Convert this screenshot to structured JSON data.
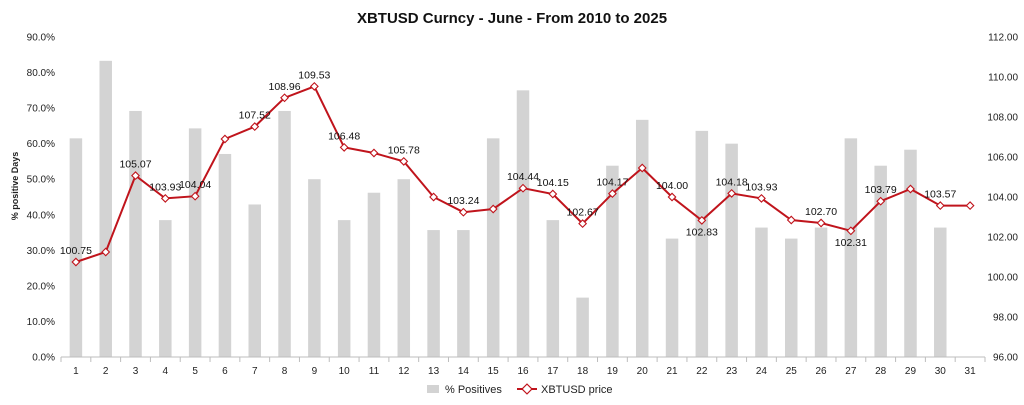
{
  "chart_data": {
    "type": "bar+line",
    "title": "XBTUSD Curncy - June - From 2010 to 2025",
    "xlabel": "",
    "ylabel": "% positive Days",
    "y2label": "",
    "categories": [
      "1",
      "2",
      "3",
      "4",
      "5",
      "6",
      "7",
      "8",
      "9",
      "10",
      "11",
      "12",
      "13",
      "14",
      "15",
      "16",
      "17",
      "18",
      "19",
      "20",
      "21",
      "22",
      "23",
      "24",
      "25",
      "26",
      "27",
      "28",
      "29",
      "30",
      "31"
    ],
    "ylim": [
      0,
      90
    ],
    "y_ticks": [
      "0.0%",
      "10.0%",
      "20.0%",
      "30.0%",
      "40.0%",
      "50.0%",
      "60.0%",
      "70.0%",
      "80.0%",
      "90.0%"
    ],
    "y2lim": [
      96,
      112
    ],
    "y2_ticks": [
      "96.00",
      "98.00",
      "100.00",
      "102.00",
      "104.00",
      "106.00",
      "108.00",
      "110.00",
      "112.00"
    ],
    "grid": false,
    "legend_position": "bottom",
    "series": [
      {
        "name": "% Positives",
        "type": "bar",
        "axis": "left",
        "color": "#d3d3d3",
        "values": [
          61.5,
          83.3,
          69.2,
          38.5,
          64.3,
          57.1,
          42.9,
          69.2,
          50.0,
          38.5,
          46.2,
          50.0,
          35.7,
          35.7,
          61.5,
          75.0,
          38.5,
          16.7,
          53.8,
          66.7,
          33.3,
          63.6,
          60.0,
          36.4,
          33.3,
          36.4,
          61.5,
          53.8,
          58.3,
          36.4,
          0
        ]
      },
      {
        "name": "XBTUSD price",
        "type": "line",
        "axis": "right",
        "color": "#c0141c",
        "values": [
          100.75,
          101.25,
          105.07,
          103.93,
          104.04,
          106.9,
          107.52,
          108.96,
          109.53,
          106.48,
          106.2,
          105.78,
          104.0,
          103.24,
          103.4,
          104.44,
          104.15,
          102.67,
          104.17,
          105.45,
          104.0,
          102.83,
          104.18,
          103.93,
          102.85,
          102.7,
          102.31,
          103.79,
          104.4,
          103.57,
          103.57
        ],
        "data_labels": [
          {
            "index": 0,
            "text": "100.75"
          },
          {
            "index": 2,
            "text": "105.07"
          },
          {
            "index": 3,
            "text": "103.93"
          },
          {
            "index": 4,
            "text": "104.04"
          },
          {
            "index": 6,
            "text": "107.52"
          },
          {
            "index": 7,
            "text": "108.96"
          },
          {
            "index": 8,
            "text": "109.53"
          },
          {
            "index": 9,
            "text": "106.48"
          },
          {
            "index": 11,
            "text": "105.78"
          },
          {
            "index": 13,
            "text": "103.24"
          },
          {
            "index": 15,
            "text": "104.44"
          },
          {
            "index": 16,
            "text": "104.15"
          },
          {
            "index": 17,
            "text": "102.67"
          },
          {
            "index": 18,
            "text": "104.17"
          },
          {
            "index": 20,
            "text": "104.00"
          },
          {
            "index": 21,
            "text": "102.83"
          },
          {
            "index": 22,
            "text": "104.18"
          },
          {
            "index": 23,
            "text": "103.93"
          },
          {
            "index": 25,
            "text": "102.70"
          },
          {
            "index": 26,
            "text": "102.31"
          },
          {
            "index": 27,
            "text": "103.79"
          },
          {
            "index": 29,
            "text": "103.57"
          }
        ]
      }
    ]
  }
}
